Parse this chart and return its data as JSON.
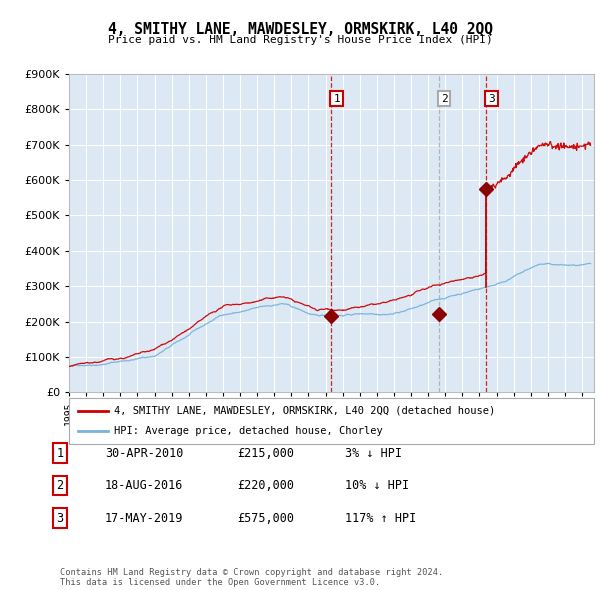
{
  "title": "4, SMITHY LANE, MAWDESLEY, ORMSKIRK, L40 2QQ",
  "subtitle": "Price paid vs. HM Land Registry's House Price Index (HPI)",
  "bg_color": "#dce9f5",
  "grid_color": "#ffffff",
  "hpi_color": "#7ab3d9",
  "price_color": "#cc0000",
  "sale_marker_color": "#8b0000",
  "vline_colors": [
    "#cc0000",
    "#aaaaaa",
    "#cc0000"
  ],
  "vline_styles": [
    "--",
    "--",
    "--"
  ],
  "sale_years": [
    2010.33,
    2016.63,
    2019.38
  ],
  "sale_prices": [
    215000,
    220000,
    575000
  ],
  "sale_labels": [
    "1",
    "2",
    "3"
  ],
  "legend_entries": [
    {
      "label": "4, SMITHY LANE, MAWDESLEY, ORMSKIRK, L40 2QQ (detached house)",
      "color": "#cc0000"
    },
    {
      "label": "HPI: Average price, detached house, Chorley",
      "color": "#7ab3d9"
    }
  ],
  "table_rows": [
    {
      "num": "1",
      "date": "30-APR-2010",
      "price": "£215,000",
      "change": "3% ↓ HPI"
    },
    {
      "num": "2",
      "date": "18-AUG-2016",
      "price": "£220,000",
      "change": "10% ↓ HPI"
    },
    {
      "num": "3",
      "date": "17-MAY-2019",
      "price": "£575,000",
      "change": "117% ↑ HPI"
    }
  ],
  "footer": "Contains HM Land Registry data © Crown copyright and database right 2024.\nThis data is licensed under the Open Government Licence v3.0.",
  "ylim": [
    0,
    900000
  ],
  "yticks": [
    0,
    100000,
    200000,
    300000,
    400000,
    500000,
    600000,
    700000,
    800000,
    900000
  ],
  "xlim_start": 1995.0,
  "xlim_end": 2025.7
}
